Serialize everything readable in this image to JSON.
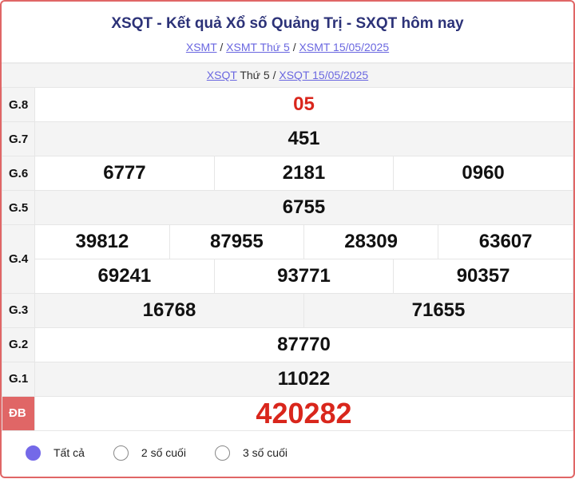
{
  "header": {
    "title": "XSQT - Kết quả Xổ số Quảng Trị - SXQT hôm nay",
    "crumbs": [
      "XSMT",
      "XSMT Thứ 5",
      "XSMT 15/05/2025"
    ]
  },
  "subnav": {
    "link1": "XSQT",
    "day": "Thứ 5",
    "link2": "XSQT 15/05/2025"
  },
  "prizes": {
    "g8": {
      "label": "G.8",
      "values": [
        "05"
      ]
    },
    "g7": {
      "label": "G.7",
      "values": [
        "451"
      ]
    },
    "g6": {
      "label": "G.6",
      "values": [
        "6777",
        "2181",
        "0960"
      ]
    },
    "g5": {
      "label": "G.5",
      "values": [
        "6755"
      ]
    },
    "g4": {
      "label": "G.4",
      "values": [
        "39812",
        "87955",
        "28309",
        "63607",
        "69241",
        "93771",
        "90357"
      ]
    },
    "g3": {
      "label": "G.3",
      "values": [
        "16768",
        "71655"
      ]
    },
    "g2": {
      "label": "G.2",
      "values": [
        "87770"
      ]
    },
    "g1": {
      "label": "G.1",
      "values": [
        "11022"
      ]
    },
    "db": {
      "label": "ĐB",
      "values": [
        "420282"
      ]
    }
  },
  "filters": {
    "options": [
      "Tất cả",
      "2 số cuối",
      "3 số cuối"
    ],
    "selected": "Tất cả"
  },
  "colors": {
    "accent": "#e06666",
    "special": "#d9261c",
    "title": "#2c3278",
    "link": "#6a67e0"
  }
}
